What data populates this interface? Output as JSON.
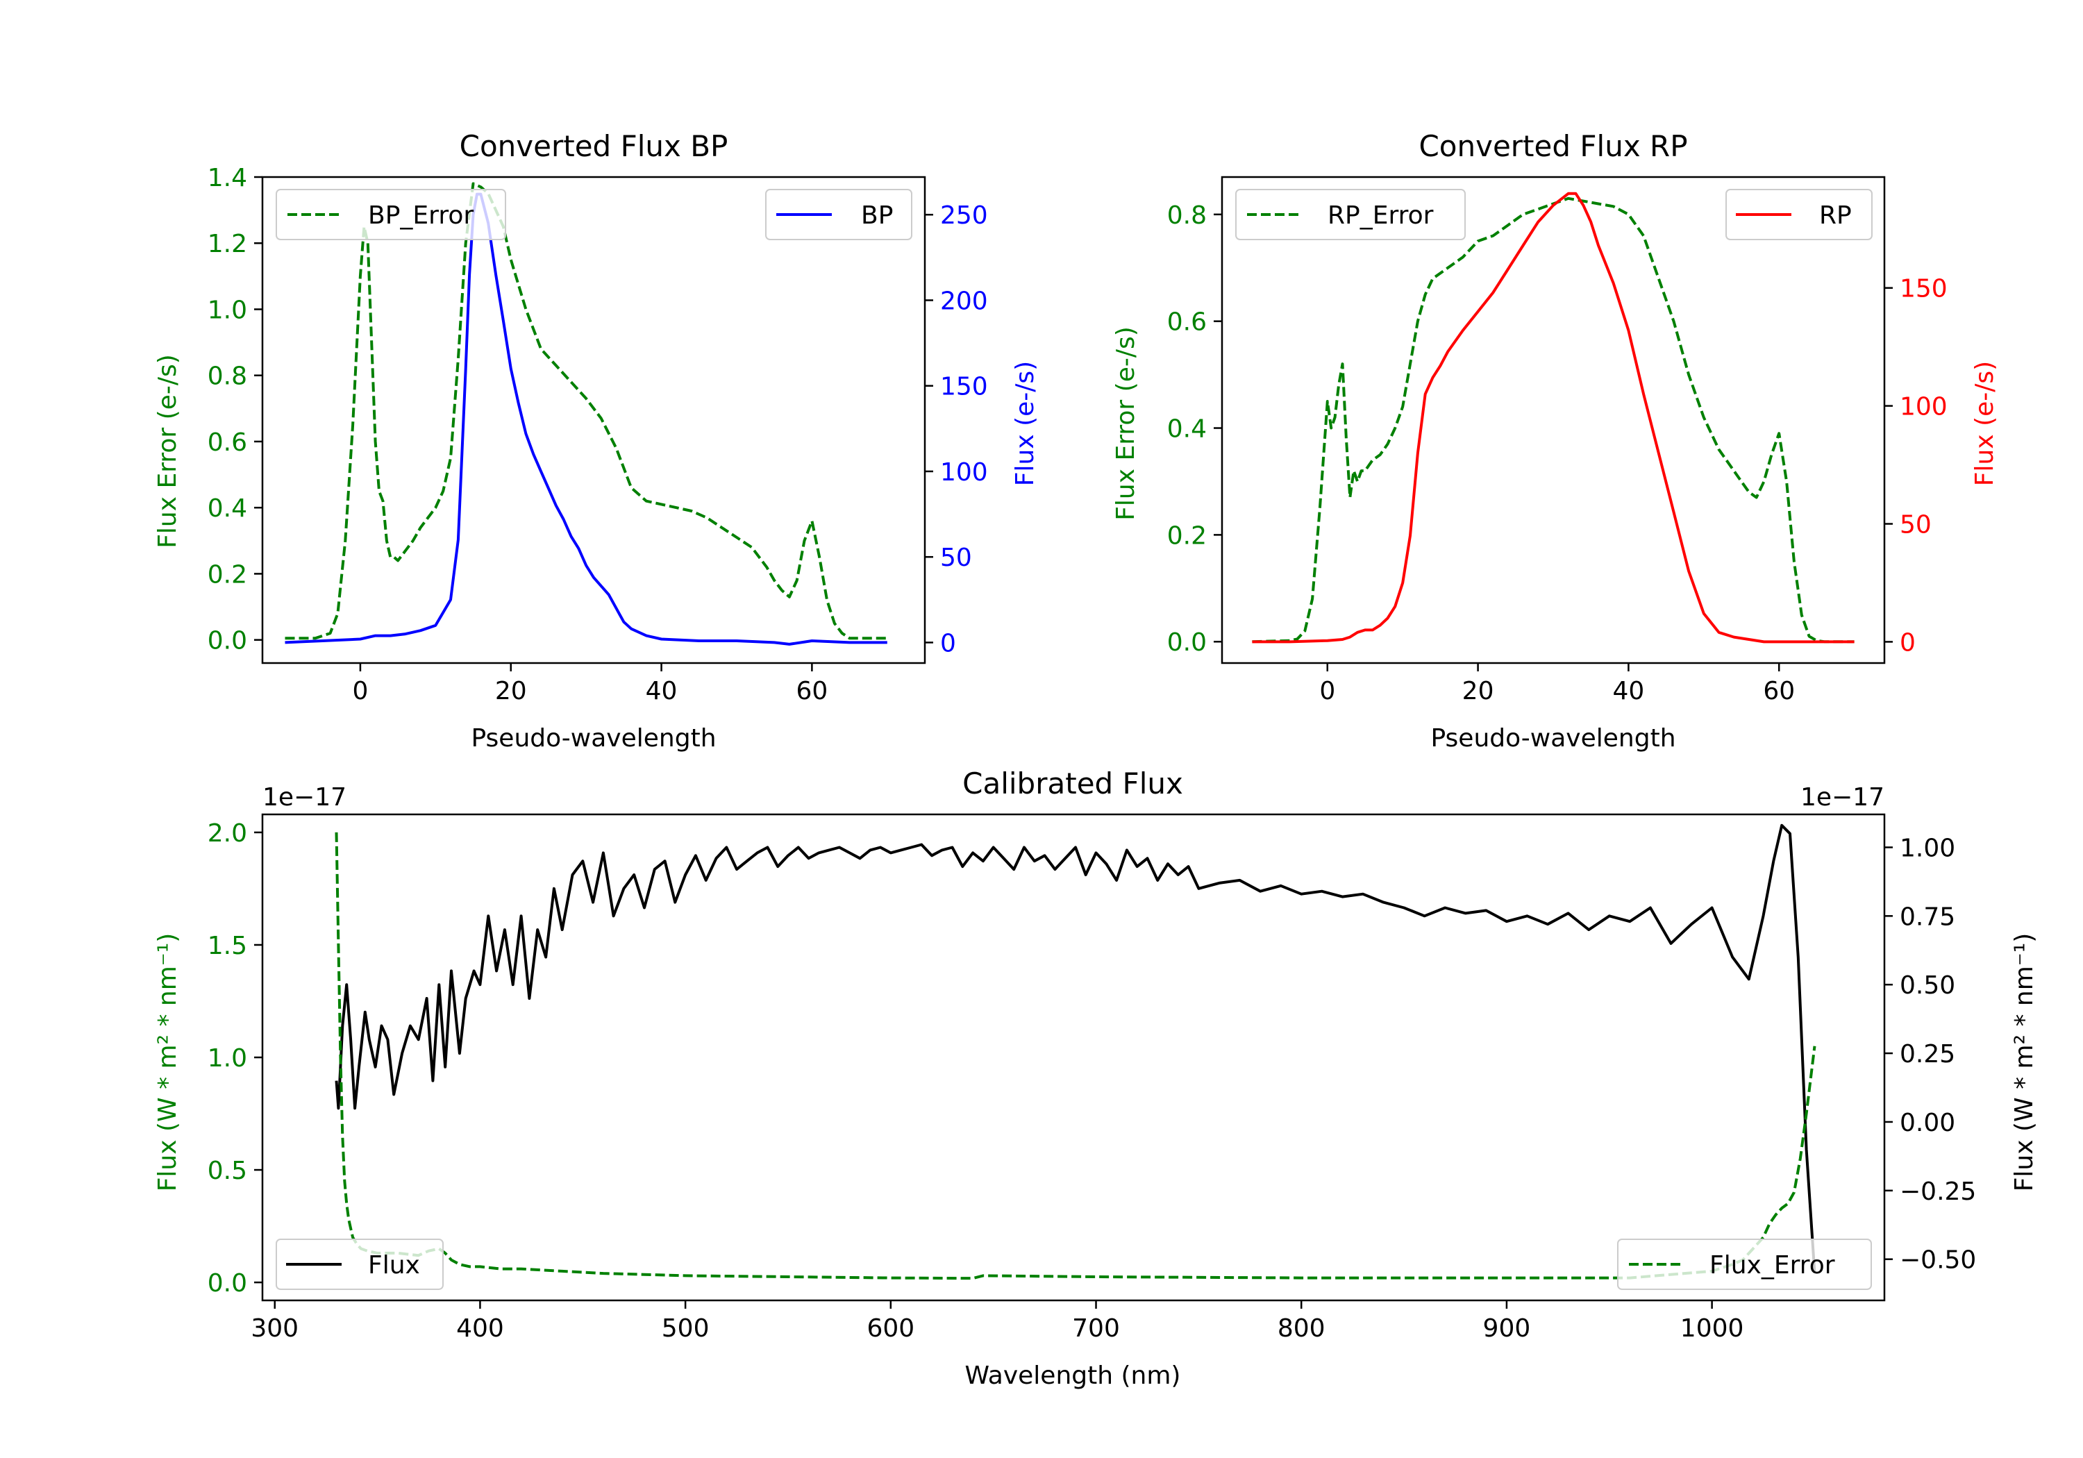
{
  "chart_data": [
    {
      "id": "bp",
      "type": "line",
      "title": "Converted Flux BP",
      "xlabel": "Pseudo-wavelength",
      "ylabel_left": "Flux Error (e-/s)",
      "ylabel_right": "Flux (e-/s)",
      "xlim": [
        -13,
        75
      ],
      "ylim_left": [
        -0.07,
        1.4
      ],
      "ylim_right": [
        -12,
        272
      ],
      "xticks": [
        0,
        20,
        40,
        60
      ],
      "yticks_left": [
        0.0,
        0.2,
        0.4,
        0.6,
        0.8,
        1.0,
        1.2,
        1.4
      ],
      "yticks_right": [
        0,
        50,
        100,
        150,
        200,
        250
      ],
      "legend": [
        {
          "label": "BP_Error",
          "position": "upper-left"
        },
        {
          "label": "BP",
          "position": "upper-right"
        }
      ],
      "series": [
        {
          "name": "BP_Error",
          "axis": "left",
          "color": "#008000",
          "style": "dashed",
          "x": [
            -10,
            -6,
            -4,
            -3,
            -2,
            -1,
            0,
            0.5,
            1,
            1.5,
            2,
            2.5,
            3,
            3.5,
            4,
            4.5,
            5,
            6,
            7,
            8,
            9,
            10,
            11,
            12,
            13,
            14,
            15,
            16,
            17,
            18,
            19,
            20,
            22,
            24,
            26,
            28,
            30,
            32,
            34,
            36,
            38,
            40,
            42,
            44,
            46,
            48,
            50,
            52,
            54,
            55,
            56,
            57,
            58,
            59,
            60,
            61,
            62,
            63,
            64,
            65,
            66,
            68,
            70
          ],
          "y": [
            0.005,
            0.005,
            0.02,
            0.08,
            0.3,
            0.65,
            1.1,
            1.25,
            1.2,
            0.9,
            0.6,
            0.45,
            0.42,
            0.3,
            0.25,
            0.25,
            0.24,
            0.27,
            0.3,
            0.34,
            0.37,
            0.4,
            0.45,
            0.55,
            0.85,
            1.2,
            1.38,
            1.37,
            1.35,
            1.3,
            1.25,
            1.15,
            1.0,
            0.88,
            0.83,
            0.78,
            0.73,
            0.67,
            0.58,
            0.46,
            0.42,
            0.41,
            0.4,
            0.39,
            0.37,
            0.34,
            0.31,
            0.28,
            0.22,
            0.18,
            0.15,
            0.13,
            0.18,
            0.3,
            0.36,
            0.25,
            0.12,
            0.05,
            0.02,
            0.005,
            0.005,
            0.005,
            0.005
          ]
        },
        {
          "name": "BP",
          "axis": "right",
          "color": "#0000ff",
          "style": "solid",
          "x": [
            -10,
            -5,
            0,
            2,
            4,
            6,
            8,
            10,
            12,
            13,
            14,
            14.5,
            15,
            15.5,
            16,
            17,
            18,
            19,
            20,
            21,
            22,
            23,
            24,
            25,
            26,
            27,
            28,
            29,
            30,
            31,
            32,
            33,
            34,
            35,
            36,
            38,
            40,
            45,
            50,
            55,
            57,
            60,
            65,
            70
          ],
          "y": [
            0,
            1,
            2,
            4,
            4,
            5,
            7,
            10,
            25,
            60,
            160,
            215,
            250,
            262,
            262,
            245,
            215,
            188,
            160,
            140,
            122,
            110,
            100,
            90,
            80,
            72,
            62,
            55,
            45,
            38,
            33,
            28,
            20,
            12,
            8,
            4,
            2,
            1,
            1,
            0,
            -1,
            1,
            0,
            0
          ]
        }
      ]
    },
    {
      "id": "rp",
      "type": "line",
      "title": "Converted Flux RP",
      "xlabel": "Pseudo-wavelength",
      "ylabel_left": "Flux Error (e-/s)",
      "ylabel_right": "Flux (e-/s)",
      "xlim": [
        -14,
        74
      ],
      "ylim_left": [
        -0.04,
        0.87
      ],
      "ylim_right": [
        -9,
        197
      ],
      "xticks": [
        0,
        20,
        40,
        60
      ],
      "yticks_left": [
        0.0,
        0.2,
        0.4,
        0.6,
        0.8
      ],
      "yticks_right": [
        0,
        50,
        100,
        150
      ],
      "legend": [
        {
          "label": "RP_Error",
          "position": "upper-left"
        },
        {
          "label": "RP",
          "position": "upper-right"
        }
      ],
      "series": [
        {
          "name": "RP_Error",
          "axis": "left",
          "color": "#008000",
          "style": "dashed",
          "x": [
            -10,
            -5,
            -4,
            -3,
            -2,
            -1,
            0,
            0.5,
            1,
            1.5,
            2,
            2.5,
            3,
            3.5,
            4,
            4.5,
            5,
            6,
            7,
            8,
            9,
            10,
            11,
            12,
            13,
            14,
            15,
            16,
            18,
            20,
            22,
            24,
            26,
            28,
            30,
            32,
            34,
            36,
            38,
            40,
            42,
            44,
            46,
            48,
            50,
            52,
            54,
            55,
            56,
            57,
            58,
            59,
            60,
            61,
            62,
            63,
            64,
            65,
            66,
            68,
            70
          ],
          "y": [
            0,
            0.002,
            0.005,
            0.02,
            0.08,
            0.25,
            0.45,
            0.4,
            0.42,
            0.48,
            0.52,
            0.38,
            0.27,
            0.32,
            0.3,
            0.32,
            0.32,
            0.34,
            0.35,
            0.37,
            0.4,
            0.44,
            0.52,
            0.6,
            0.65,
            0.68,
            0.69,
            0.7,
            0.72,
            0.75,
            0.76,
            0.78,
            0.8,
            0.81,
            0.82,
            0.83,
            0.825,
            0.82,
            0.815,
            0.8,
            0.76,
            0.68,
            0.6,
            0.5,
            0.42,
            0.36,
            0.32,
            0.3,
            0.28,
            0.27,
            0.3,
            0.35,
            0.39,
            0.3,
            0.15,
            0.05,
            0.01,
            0.002,
            0,
            0,
            0
          ]
        },
        {
          "name": "RP",
          "axis": "right",
          "color": "#ff0000",
          "style": "solid",
          "x": [
            -10,
            -5,
            0,
            2,
            3,
            4,
            5,
            6,
            7,
            8,
            9,
            10,
            11,
            12,
            13,
            14,
            15,
            16,
            18,
            20,
            22,
            24,
            26,
            28,
            30,
            32,
            33,
            34,
            35,
            36,
            38,
            40,
            42,
            44,
            46,
            48,
            50,
            52,
            54,
            56,
            58,
            60,
            62,
            65,
            70
          ],
          "y": [
            0,
            0,
            0.5,
            1,
            2,
            4,
            5,
            5,
            7,
            10,
            15,
            25,
            45,
            80,
            105,
            112,
            117,
            123,
            132,
            140,
            148,
            158,
            168,
            178,
            185,
            190,
            190,
            185,
            178,
            168,
            152,
            132,
            105,
            80,
            55,
            30,
            12,
            4,
            2,
            1,
            0,
            0,
            0,
            0,
            0
          ]
        }
      ]
    },
    {
      "id": "calibrated",
      "type": "line",
      "title": "Calibrated Flux",
      "xlabel": "Wavelength (nm)",
      "ylabel_left": "Flux (W * m² * nm⁻¹)",
      "ylabel_right": "Flux (W * m² * nm⁻¹)",
      "offset_left": "1e−17",
      "offset_right": "1e−17",
      "xlim": [
        294,
        1084
      ],
      "ylim_left": [
        -0.08,
        2.08
      ],
      "ylim_right": [
        -0.65,
        1.12
      ],
      "xticks": [
        300,
        400,
        500,
        600,
        700,
        800,
        900,
        1000
      ],
      "yticks_left": [
        0.0,
        0.5,
        1.0,
        1.5,
        2.0
      ],
      "yticks_right": [
        -0.5,
        -0.25,
        0.0,
        0.25,
        0.5,
        0.75,
        1.0
      ],
      "ytick_labels_left": [
        "0.0",
        "0.5",
        "1.0",
        "1.5",
        "2.0"
      ],
      "ytick_labels_right": [
        "−0.50",
        "−0.25",
        "0.00",
        "0.25",
        "0.50",
        "0.75",
        "1.00"
      ],
      "legend": [
        {
          "label": "Flux",
          "position": "lower-left"
        },
        {
          "label": "Flux_Error",
          "position": "lower-right"
        }
      ],
      "series": [
        {
          "name": "Flux",
          "axis": "right",
          "color": "#000000",
          "style": "solid",
          "x": [
            330,
            331,
            333,
            335,
            337,
            339,
            341,
            344,
            346,
            349,
            352,
            355,
            358,
            362,
            366,
            370,
            374,
            377,
            380,
            383,
            386,
            390,
            393,
            397,
            400,
            404,
            408,
            412,
            416,
            420,
            424,
            428,
            432,
            436,
            440,
            445,
            450,
            455,
            460,
            465,
            470,
            475,
            480,
            485,
            490,
            495,
            500,
            505,
            510,
            515,
            520,
            525,
            530,
            535,
            540,
            545,
            550,
            555,
            560,
            565,
            570,
            575,
            580,
            585,
            590,
            595,
            600,
            605,
            610,
            615,
            620,
            625,
            630,
            635,
            640,
            645,
            650,
            655,
            660,
            665,
            670,
            675,
            680,
            685,
            690,
            695,
            700,
            705,
            710,
            715,
            720,
            725,
            730,
            735,
            740,
            745,
            750,
            760,
            770,
            780,
            790,
            800,
            810,
            820,
            830,
            840,
            850,
            860,
            870,
            880,
            890,
            900,
            910,
            920,
            930,
            940,
            950,
            960,
            970,
            980,
            990,
            1000,
            1010,
            1018,
            1025,
            1030,
            1034,
            1038,
            1042,
            1046,
            1050
          ],
          "y": [
            0.15,
            0.05,
            0.35,
            0.5,
            0.3,
            0.05,
            0.2,
            0.4,
            0.3,
            0.2,
            0.35,
            0.3,
            0.1,
            0.25,
            0.35,
            0.3,
            0.45,
            0.15,
            0.5,
            0.2,
            0.55,
            0.25,
            0.45,
            0.55,
            0.5,
            0.75,
            0.55,
            0.7,
            0.5,
            0.75,
            0.45,
            0.7,
            0.6,
            0.85,
            0.7,
            0.9,
            0.95,
            0.8,
            0.98,
            0.75,
            0.85,
            0.9,
            0.78,
            0.92,
            0.95,
            0.8,
            0.9,
            0.97,
            0.88,
            0.96,
            1.0,
            0.92,
            0.95,
            0.98,
            1.0,
            0.93,
            0.97,
            1.0,
            0.96,
            0.98,
            0.99,
            1.0,
            0.98,
            0.96,
            0.99,
            1.0,
            0.98,
            0.99,
            1.0,
            1.01,
            0.97,
            0.99,
            1.0,
            0.93,
            0.98,
            0.95,
            1.0,
            0.96,
            0.92,
            1.0,
            0.95,
            0.97,
            0.92,
            0.96,
            1.0,
            0.9,
            0.98,
            0.94,
            0.88,
            0.99,
            0.93,
            0.96,
            0.88,
            0.94,
            0.9,
            0.93,
            0.85,
            0.87,
            0.88,
            0.84,
            0.86,
            0.83,
            0.84,
            0.82,
            0.83,
            0.8,
            0.78,
            0.75,
            0.78,
            0.76,
            0.77,
            0.73,
            0.75,
            0.72,
            0.76,
            0.7,
            0.75,
            0.73,
            0.78,
            0.65,
            0.72,
            0.78,
            0.6,
            0.52,
            0.75,
            0.95,
            1.08,
            1.05,
            0.6,
            -0.1,
            -0.55
          ]
        },
        {
          "name": "Flux_Error",
          "axis": "left",
          "color": "#008000",
          "style": "dashed",
          "x": [
            330,
            331,
            332,
            333,
            334,
            335,
            336,
            337,
            338,
            340,
            342,
            345,
            350,
            360,
            370,
            375,
            380,
            383,
            386,
            390,
            395,
            400,
            410,
            420,
            430,
            440,
            450,
            460,
            480,
            500,
            550,
            600,
            640,
            645,
            700,
            800,
            900,
            960,
            1000,
            1010,
            1015,
            1020,
            1025,
            1028,
            1031,
            1034,
            1037,
            1040,
            1043,
            1046,
            1050
          ],
          "y": [
            2.0,
            1.5,
            1.0,
            0.65,
            0.45,
            0.35,
            0.28,
            0.24,
            0.2,
            0.17,
            0.15,
            0.14,
            0.13,
            0.13,
            0.12,
            0.14,
            0.15,
            0.13,
            0.1,
            0.08,
            0.07,
            0.07,
            0.06,
            0.06,
            0.055,
            0.05,
            0.045,
            0.04,
            0.035,
            0.03,
            0.025,
            0.02,
            0.018,
            0.03,
            0.025,
            0.02,
            0.02,
            0.02,
            0.05,
            0.08,
            0.1,
            0.15,
            0.2,
            0.26,
            0.3,
            0.33,
            0.35,
            0.4,
            0.55,
            0.75,
            1.05
          ]
        }
      ]
    }
  ]
}
